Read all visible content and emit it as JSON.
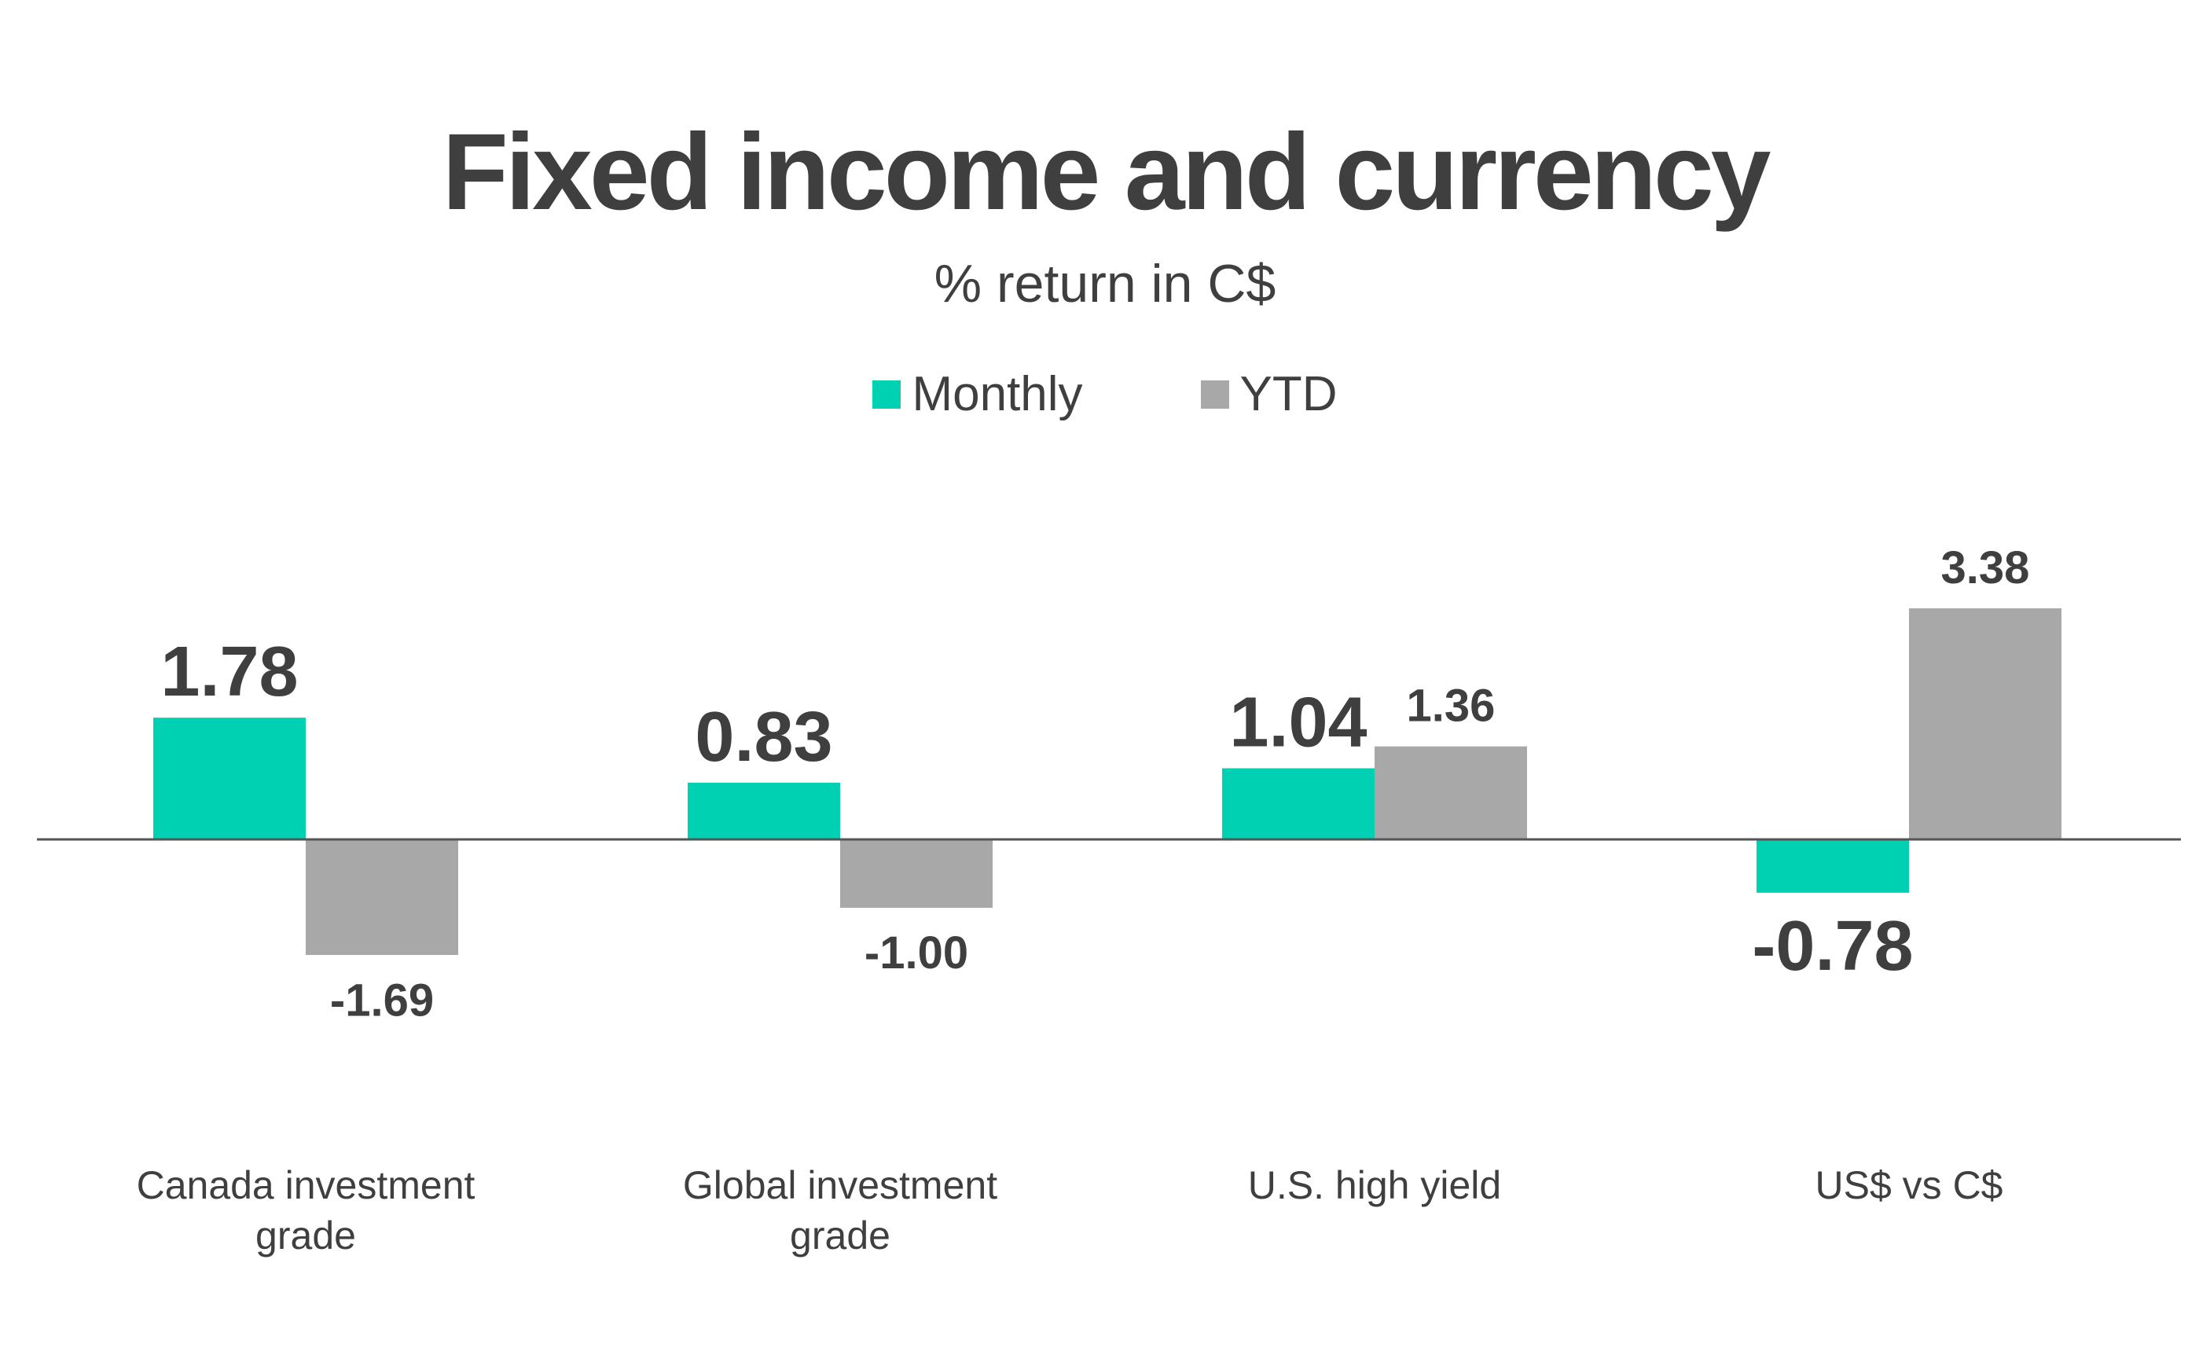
{
  "title": "Fixed income and currency",
  "subtitle": "% return in C$",
  "legend": [
    {
      "name": "Monthly",
      "color": "#00d1b2"
    },
    {
      "name": "YTD",
      "color": "#a8a8a8"
    }
  ],
  "chart_data": {
    "type": "bar",
    "title": "Fixed income and currency",
    "subtitle": "% return in C$",
    "xlabel": "",
    "ylabel": "",
    "ylim": [
      -1.69,
      3.38
    ],
    "grid": false,
    "legend_position": "top-center",
    "categories": [
      [
        "Canada investment",
        "grade"
      ],
      [
        "Global investment",
        "grade"
      ],
      [
        "U.S. high yield"
      ],
      [
        "US$ vs C$"
      ]
    ],
    "series": [
      {
        "name": "Monthly",
        "color": "#00d1b2",
        "values": [
          1.78,
          0.83,
          1.04,
          -0.78
        ],
        "labels": [
          "1.78",
          "0.83",
          "1.04",
          "-0.78"
        ],
        "label_emphasis": "large"
      },
      {
        "name": "YTD",
        "color": "#a8a8a8",
        "values": [
          -1.69,
          -1.0,
          1.36,
          3.38
        ],
        "labels": [
          "-1.69",
          "-1.00",
          "1.36",
          "3.38"
        ],
        "label_emphasis": "small"
      }
    ]
  }
}
